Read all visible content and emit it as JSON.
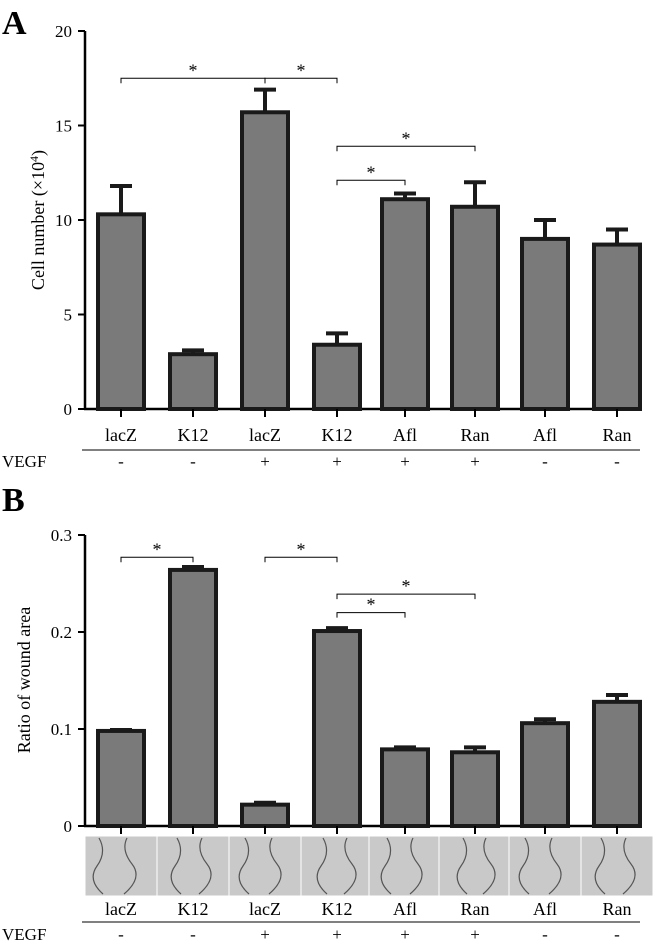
{
  "chart_data": [
    {
      "panel": "A",
      "type": "bar",
      "title": "",
      "ylabel": "Cell number (×10",
      "ylabel_exponent": "4",
      "ylabel_close": ")",
      "ylim": [
        0,
        20
      ],
      "yticks": [
        "0",
        "5",
        "10",
        "15",
        "20"
      ],
      "categories": [
        "lacZ",
        "K12",
        "lacZ",
        "K12",
        "Afl",
        "Ran",
        "Afl",
        "Ran"
      ],
      "values": [
        10.3,
        2.9,
        15.7,
        3.4,
        11.1,
        10.7,
        9.0,
        8.7
      ],
      "errors": [
        1.5,
        0.2,
        1.2,
        0.6,
        0.3,
        1.3,
        1.0,
        0.8
      ],
      "condition_label": "VEGF",
      "conditions": [
        "-",
        "-",
        "+",
        "+",
        "+",
        "+",
        "-",
        "-"
      ],
      "significance": [
        {
          "from": 0,
          "to": 2,
          "label": "*",
          "y": 17.5
        },
        {
          "from": 2,
          "to": 3,
          "label": "*",
          "y": 17.5
        },
        {
          "from": 3,
          "to": 5,
          "label": "*",
          "y": 13.9
        },
        {
          "from": 3,
          "to": 4,
          "label": "*",
          "y": 12.1
        }
      ]
    },
    {
      "panel": "B",
      "type": "bar",
      "title": "",
      "ylabel": "Ratio of wound area",
      "ylim": [
        0,
        0.3
      ],
      "yticks": [
        "0",
        "0.1",
        "0.2",
        "0.3"
      ],
      "categories": [
        "lacZ",
        "K12",
        "lacZ",
        "K12",
        "Afl",
        "Ran",
        "Afl",
        "Ran"
      ],
      "values": [
        0.098,
        0.264,
        0.022,
        0.201,
        0.079,
        0.076,
        0.106,
        0.128
      ],
      "errors": [
        0.001,
        0.003,
        0.002,
        0.003,
        0.002,
        0.005,
        0.004,
        0.007
      ],
      "condition_label": "VEGF",
      "conditions": [
        "-",
        "-",
        "+",
        "+",
        "+",
        "+",
        "-",
        "-"
      ],
      "has_wound_images": true,
      "significance": [
        {
          "from": 0,
          "to": 1,
          "label": "*",
          "y": 0.277
        },
        {
          "from": 2,
          "to": 3,
          "label": "*",
          "y": 0.277
        },
        {
          "from": 3,
          "to": 5,
          "label": "*",
          "y": 0.239
        },
        {
          "from": 3,
          "to": 4,
          "label": "*",
          "y": 0.22
        }
      ]
    }
  ],
  "colors": {
    "bar_fill": "#7a7a7a",
    "bar_stroke": "#1a1a1a",
    "axis": "#000000",
    "image_bg": "#c9c9c9"
  }
}
